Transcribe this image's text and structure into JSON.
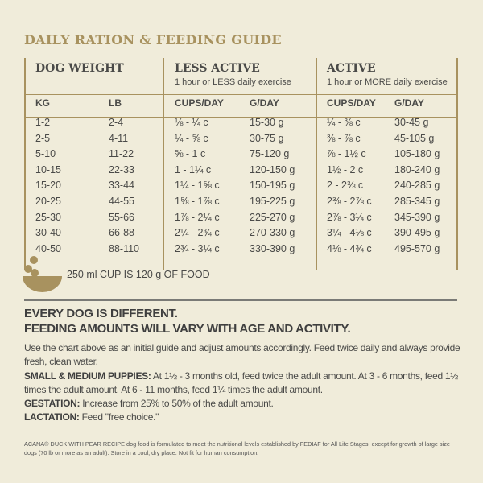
{
  "title": "DAILY RATION & FEEDING GUIDE",
  "table": {
    "groups": [
      {
        "label": "DOG WEIGHT",
        "sub": ""
      },
      {
        "label": "LESS ACTIVE",
        "sub": "1 hour or LESS daily exercise"
      },
      {
        "label": "ACTIVE",
        "sub": "1 hour or MORE daily exercise"
      }
    ],
    "columns": [
      "KG",
      "LB",
      "CUPS/DAY",
      "G/DAY",
      "CUPS/DAY",
      "G/DAY"
    ],
    "rows": [
      [
        "1-2",
        "2-4",
        "⅛ - ¼ c",
        "15-30 g",
        "¼ - ⅜ c",
        "30-45 g"
      ],
      [
        "2-5",
        "4-11",
        "¼ - ⅝ c",
        "30-75 g",
        "⅜ - ⅞ c",
        "45-105 g"
      ],
      [
        "5-10",
        "11-22",
        "⅝ - 1 c",
        "75-120 g",
        "⅞ - 1½ c",
        "105-180 g"
      ],
      [
        "10-15",
        "22-33",
        "1 - 1¼ c",
        "120-150 g",
        "1½ - 2 c",
        "180-240 g"
      ],
      [
        "15-20",
        "33-44",
        "1¼ - 1⅝ c",
        "150-195 g",
        "2 - 2⅜ c",
        "240-285 g"
      ],
      [
        "20-25",
        "44-55",
        "1⅝ - 1⅞ c",
        "195-225 g",
        "2⅜ - 2⅞ c",
        "285-345 g"
      ],
      [
        "25-30",
        "55-66",
        "1⅞ - 2¼ c",
        "225-270 g",
        "2⅞ - 3¼ c",
        "345-390 g"
      ],
      [
        "30-40",
        "66-88",
        "2¼ - 2¾ c",
        "270-330 g",
        "3¼ - 4⅛ c",
        "390-495 g"
      ],
      [
        "40-50",
        "88-110",
        "2¾ - 3¼ c",
        "330-390 g",
        "4⅛ - 4¾ c",
        "495-570 g"
      ]
    ]
  },
  "cup_note": "250 ml CUP IS 120 g OF FOOD",
  "heading": [
    "EVERY DOG IS DIFFERENT.",
    "FEEDING AMOUNTS WILL VARY WITH AGE AND ACTIVITY."
  ],
  "intro": "Use the chart above as an initial guide and adjust amounts accordingly. Feed twice daily and always provide fresh, clean water.",
  "puppies_label": "SMALL & MEDIUM PUPPIES:",
  "puppies_text": " At 1½ - 3 months old, feed twice the adult amount. At 3 - 6 months, feed 1½ times the adult amount. At 6 - 11 months, feed 1¼ times the adult amount.",
  "gestation_label": "GESTATION:",
  "gestation_text": " Increase from 25% to 50% of the adult amount.",
  "lactation_label": "LACTATION:",
  "lactation_text": " Feed \"free choice.\"",
  "footnote": "ACANA® DUCK WITH PEAR RECIPE dog food is formulated to meet the nutritional levels established by FEDIAF for All Life Stages, except for growth of large size dogs (70 lb or more as an adult). Store in a cool, dry place. Not fit for human consumption.",
  "colors": {
    "background": "#f0ecda",
    "gold": "#a8925f",
    "text": "#4a4a48"
  },
  "icons": [
    "bowl-with-kibble-icon"
  ]
}
